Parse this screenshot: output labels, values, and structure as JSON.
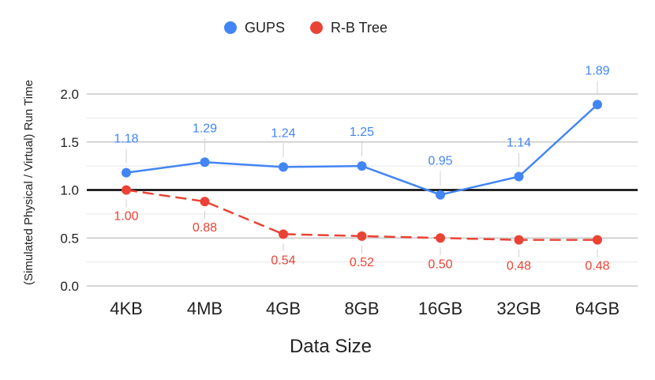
{
  "chart_data": {
    "type": "line",
    "title": "",
    "xlabel": "Data Size",
    "ylabel": "(Simulated Physical / Virtual) Run Time",
    "categories": [
      "4KB",
      "4MB",
      "4GB",
      "8GB",
      "16GB",
      "32GB",
      "64GB"
    ],
    "ylim": [
      0,
      2.0
    ],
    "yticks": [
      "0.0",
      "0.5",
      "1.0",
      "1.5",
      "2.0"
    ],
    "grid": true,
    "legend_position": "top-center",
    "reference_line": {
      "y": 1.0,
      "color": "#000000"
    },
    "series": [
      {
        "name": "GUPS",
        "color": "#4285f4",
        "style": "solid",
        "values": [
          1.18,
          1.29,
          1.24,
          1.25,
          0.95,
          1.14,
          1.89
        ],
        "labels": [
          "1.18",
          "1.29",
          "1.24",
          "1.25",
          "0.95",
          "1.14",
          "1.89"
        ]
      },
      {
        "name": "R-B Tree",
        "color": "#ea4335",
        "style": "dashed",
        "values": [
          1.0,
          0.88,
          0.54,
          0.52,
          0.5,
          0.48,
          0.48
        ],
        "labels": [
          "1.00",
          "0.88",
          "0.54",
          "0.52",
          "0.50",
          "0.48",
          "0.48"
        ]
      }
    ]
  }
}
